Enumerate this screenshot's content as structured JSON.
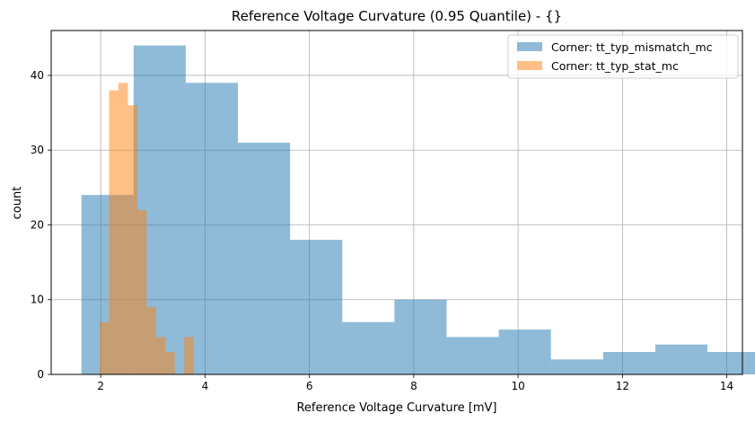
{
  "chart_data": {
    "type": "histogram",
    "title": "Reference Voltage Curvature (0.95 Quantile) - {}",
    "xlabel": "Reference Voltage Curvature [mV]",
    "ylabel": "count",
    "xlim": [
      1.05,
      14.3
    ],
    "ylim": [
      0,
      46
    ],
    "xticks": [
      2,
      4,
      6,
      8,
      10,
      12,
      14
    ],
    "yticks": [
      0,
      10,
      20,
      30,
      40
    ],
    "grid": true,
    "legend_position": "top-right",
    "series": [
      {
        "name": "Corner: tt_typ_mismatch_mc",
        "color": "#1f77b4",
        "alpha": 0.5,
        "bin_edges": [
          1.63,
          2.63,
          3.63,
          4.63,
          5.63,
          6.63,
          7.63,
          8.63,
          9.63,
          10.63,
          11.63,
          12.63,
          13.63,
          14.63
        ],
        "bins": [
          {
            "start": 1.63,
            "end": 2.63,
            "count": 24
          },
          {
            "start": 2.63,
            "end": 3.63,
            "count": 44
          },
          {
            "start": 3.63,
            "end": 4.63,
            "count": 39
          },
          {
            "start": 4.63,
            "end": 5.63,
            "count": 31
          },
          {
            "start": 5.63,
            "end": 6.63,
            "count": 18
          },
          {
            "start": 6.63,
            "end": 7.63,
            "count": 7
          },
          {
            "start": 7.63,
            "end": 8.63,
            "count": 10
          },
          {
            "start": 8.63,
            "end": 9.63,
            "count": 5
          },
          {
            "start": 9.63,
            "end": 10.63,
            "count": 6
          },
          {
            "start": 10.63,
            "end": 11.63,
            "count": 2
          },
          {
            "start": 11.63,
            "end": 12.63,
            "count": 3
          },
          {
            "start": 12.63,
            "end": 13.63,
            "count": 4
          },
          {
            "start": 13.63,
            "end": 14.63,
            "count": 3
          }
        ]
      },
      {
        "name": "Corner: tt_typ_stat_mc",
        "color": "#ff7f0e",
        "alpha": 0.5,
        "bins": [
          {
            "start": 1.98,
            "end": 2.16,
            "count": 7
          },
          {
            "start": 2.16,
            "end": 2.34,
            "count": 38
          },
          {
            "start": 2.34,
            "end": 2.52,
            "count": 39
          },
          {
            "start": 2.52,
            "end": 2.7,
            "count": 36
          },
          {
            "start": 2.7,
            "end": 2.88,
            "count": 22
          },
          {
            "start": 2.88,
            "end": 3.06,
            "count": 9
          },
          {
            "start": 3.06,
            "end": 3.24,
            "count": 5
          },
          {
            "start": 3.24,
            "end": 3.42,
            "count": 3
          },
          {
            "start": 3.42,
            "end": 3.6,
            "count": 0
          },
          {
            "start": 3.6,
            "end": 3.78,
            "count": 5
          }
        ]
      }
    ]
  }
}
